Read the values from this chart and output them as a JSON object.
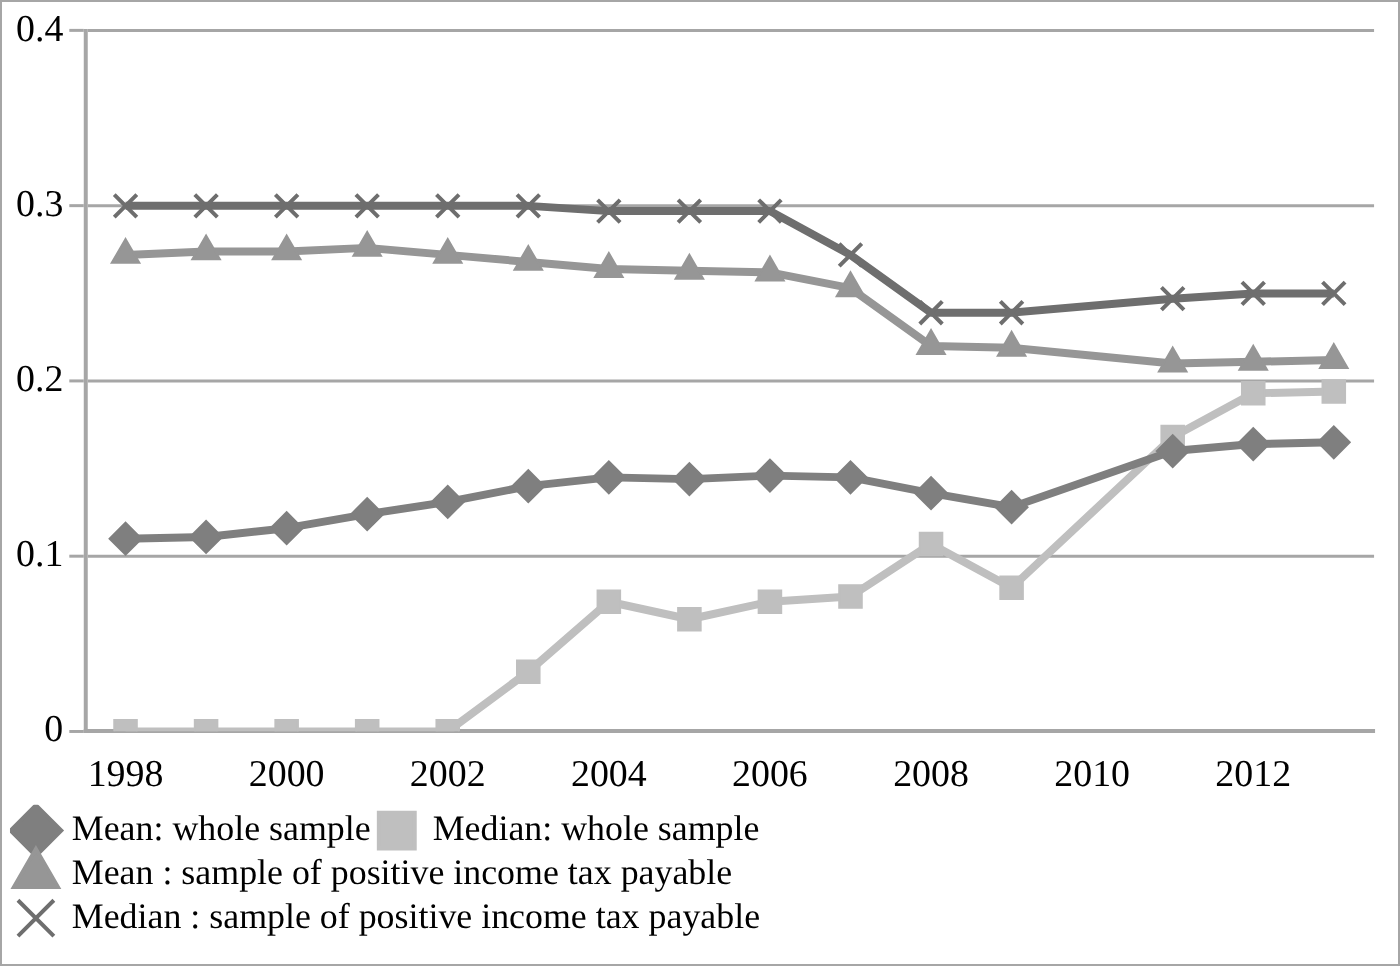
{
  "chart_data": {
    "type": "line",
    "categories": [
      "1998",
      null,
      "2000",
      null,
      "2002",
      null,
      "2004",
      null,
      "2006",
      null,
      "2008",
      null,
      "2010",
      null,
      "2012",
      null
    ],
    "ylim": [
      0,
      0.4
    ],
    "yticks": [
      0,
      0.1,
      0.2,
      0.3,
      0.4
    ],
    "grid": "y",
    "legend": "bottom",
    "line_style": "solid",
    "series": [
      {
        "name": "Mean: whole sample",
        "color": "#7f7f7f",
        "marker": "diamond",
        "values": [
          0.11,
          0.111,
          0.116,
          0.124,
          0.131,
          0.14,
          0.145,
          0.144,
          0.146,
          0.145,
          0.136,
          0.128,
          null,
          0.16,
          0.164,
          0.165
        ]
      },
      {
        "name": "Median: whole sample",
        "color": "#bfbfbf",
        "marker": "square",
        "values": [
          0,
          0,
          0,
          0,
          0,
          0.034,
          0.074,
          0.064,
          0.074,
          0.077,
          0.107,
          0.082,
          null,
          0.168,
          0.193,
          0.194
        ]
      },
      {
        "name": "Mean : sample of positive income tax payable",
        "color": "#969696",
        "marker": "triangle",
        "values": [
          0.272,
          0.274,
          0.274,
          0.276,
          0.272,
          0.268,
          0.264,
          0.263,
          0.262,
          0.253,
          0.22,
          0.219,
          null,
          0.21,
          0.211,
          0.212
        ]
      },
      {
        "name": "Median : sample of positive income tax payable",
        "color": "#6e6e6e",
        "marker": "cross",
        "values": [
          0.3,
          0.3,
          0.3,
          0.3,
          0.3,
          0.3,
          0.297,
          0.297,
          0.297,
          0.272,
          0.239,
          0.239,
          null,
          0.247,
          0.25,
          0.25
        ]
      }
    ]
  }
}
